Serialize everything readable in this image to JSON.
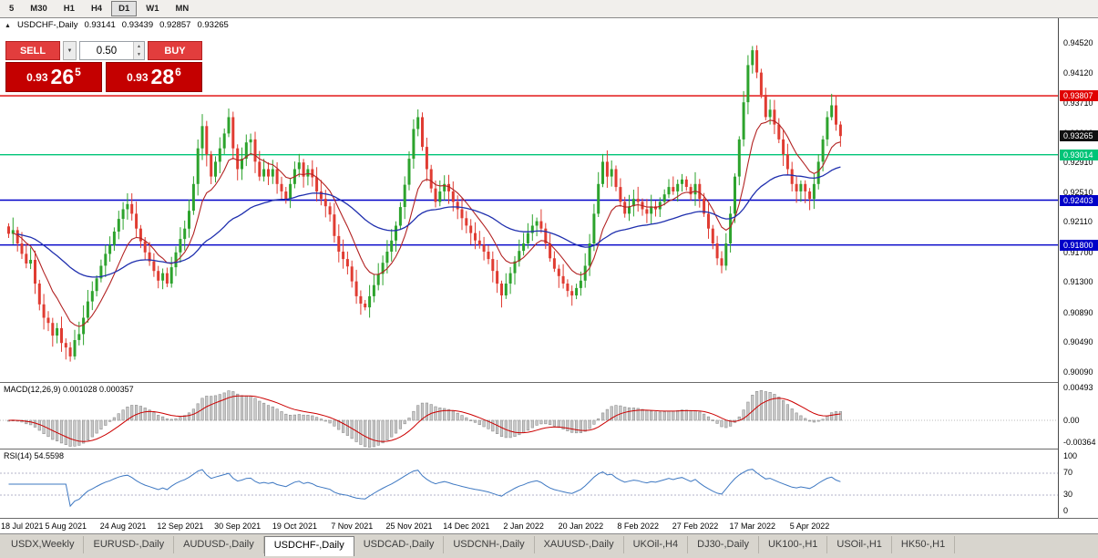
{
  "toolbar": {
    "timeframes": [
      "5",
      "M30",
      "H1",
      "H4",
      "D1",
      "W1",
      "MN"
    ],
    "active": "D1"
  },
  "trade_panel": {
    "sell_label": "SELL",
    "buy_label": "BUY",
    "volume": "0.50",
    "sell_price": {
      "small": "0.93",
      "big": "26",
      "pip": "5"
    },
    "buy_price": {
      "small": "0.93",
      "big": "28",
      "pip": "6"
    }
  },
  "chart_data": {
    "type": "candlestick",
    "title": "USDCHF-,Daily",
    "symbol": "USDCHF-,Daily",
    "collapse_icon": "triangle-up",
    "ohlc": {
      "open": "0.93141",
      "high": "0.93439",
      "low": "0.92857",
      "close": "0.93265"
    },
    "first_open": 0.9205,
    "closes": [
      0.9195,
      0.92,
      0.9182,
      0.9168,
      0.9155,
      0.916,
      0.9128,
      0.91,
      0.9082,
      0.9075,
      0.9058,
      0.9068,
      0.9048,
      0.9042,
      0.903,
      0.9052,
      0.906,
      0.9082,
      0.9104,
      0.9118,
      0.9135,
      0.9152,
      0.9168,
      0.918,
      0.9198,
      0.9215,
      0.9228,
      0.9235,
      0.9222,
      0.9202,
      0.9185,
      0.917,
      0.9158,
      0.9145,
      0.9132,
      0.9142,
      0.9128,
      0.915,
      0.917,
      0.9188,
      0.9202,
      0.9226,
      0.9262,
      0.931,
      0.934,
      0.9302,
      0.9272,
      0.9292,
      0.931,
      0.933,
      0.9352,
      0.931,
      0.9282,
      0.9296,
      0.9318,
      0.9322,
      0.9292,
      0.9272,
      0.9282,
      0.9272,
      0.9282,
      0.9262,
      0.9252,
      0.9242,
      0.9262,
      0.9282,
      0.9291,
      0.9272,
      0.9282,
      0.9271,
      0.9252,
      0.9242,
      0.9232,
      0.9221,
      0.9192,
      0.9171,
      0.9161,
      0.9151,
      0.9131,
      0.9111,
      0.9101,
      0.9096,
      0.9111,
      0.9126,
      0.9141,
      0.9156,
      0.9171,
      0.9186,
      0.9206,
      0.9231,
      0.9261,
      0.9296,
      0.9336,
      0.9352,
      0.9312,
      0.9282,
      0.9256,
      0.9238,
      0.9252,
      0.9262,
      0.9252,
      0.9238,
      0.9228,
      0.9216,
      0.9206,
      0.9196,
      0.9186,
      0.918,
      0.9171,
      0.9161,
      0.9145,
      0.9128,
      0.9112,
      0.9128,
      0.9142,
      0.9158,
      0.9172,
      0.9182,
      0.9196,
      0.9206,
      0.9212,
      0.9202,
      0.9182,
      0.9162,
      0.9148,
      0.9138,
      0.9128,
      0.9118,
      0.9112,
      0.9122,
      0.9132,
      0.9152,
      0.9182,
      0.9222,
      0.9262,
      0.9292,
      0.9272,
      0.9282,
      0.9258,
      0.9238,
      0.9222,
      0.9232,
      0.9242,
      0.9238,
      0.9228,
      0.9222,
      0.9232,
      0.9228,
      0.9238,
      0.9248,
      0.9258,
      0.9252,
      0.9262,
      0.9268,
      0.9258,
      0.9248,
      0.9262,
      0.9242,
      0.9222,
      0.9202,
      0.9182,
      0.9162,
      0.9152,
      0.9182,
      0.9222,
      0.9272,
      0.9322,
      0.9372,
      0.9422,
      0.9442,
      0.9412,
      0.9382,
      0.9352,
      0.9362,
      0.9342,
      0.9322,
      0.9302,
      0.9282,
      0.9262,
      0.9252,
      0.9262,
      0.9252,
      0.9242,
      0.9262,
      0.9292,
      0.9322,
      0.9352,
      0.9368,
      0.9342,
      0.93265
    ],
    "x_dates": [
      "18 Jul 2021",
      "5 Aug 2021",
      "24 Aug 2021",
      "12 Sep 2021",
      "30 Sep 2021",
      "19 Oct 2021",
      "7 Nov 2021",
      "25 Nov 2021",
      "14 Dec 2021",
      "2 Jan 2022",
      "20 Jan 2022",
      "8 Feb 2022",
      "27 Feb 2022",
      "17 Mar 2022",
      "5 Apr 2022"
    ],
    "date_tick_step": 13,
    "y_ticks": [
      "0.94520",
      "0.94120",
      "0.93710",
      "0.93310",
      "0.92910",
      "0.92510",
      "0.92110",
      "0.91700",
      "0.91300",
      "0.90890",
      "0.90490",
      "0.90090"
    ],
    "levels": [
      {
        "price": "0.93807",
        "color": "#e00000"
      },
      {
        "price": "0.93014",
        "color": "#00c478"
      },
      {
        "price": "0.92403",
        "color": "#0000c8"
      },
      {
        "price": "0.91800",
        "color": "#0000c8"
      }
    ],
    "bid": {
      "price": "0.93265",
      "bg": "#111111"
    },
    "colors": {
      "bull": "#2da32d",
      "bear": "#e03c32",
      "ma_fast": "#b22222",
      "ma_slow": "#1f2fae",
      "macd_hist_fill": "#c9c9c9",
      "macd_hist_stroke": "#8f8f8f",
      "macd_signal": "#cc0000",
      "rsi": "#3e78c2"
    },
    "indicators": {
      "macd": {
        "label": "MACD(12,26,9) 0.001028 0.000357",
        "axis": [
          "0.00493",
          "0.00",
          "-0.00364"
        ]
      },
      "rsi": {
        "label": "RSI(14) 54.5598",
        "axis": [
          "100",
          "70",
          "30",
          "0"
        ],
        "levels": [
          70,
          30
        ]
      }
    }
  },
  "tabs": {
    "items": [
      "USDX,Weekly",
      "EURUSD-,Daily",
      "AUDUSD-,Daily",
      "USDCHF-,Daily",
      "USDCAD-,Daily",
      "USDCNH-,Daily",
      "XAUUSD-,Daily",
      "UKOil-,H4",
      "DJ30-,Daily",
      "UK100-,H1",
      "USOil-,H1",
      "HK50-,H1"
    ],
    "active_index": 3
  }
}
